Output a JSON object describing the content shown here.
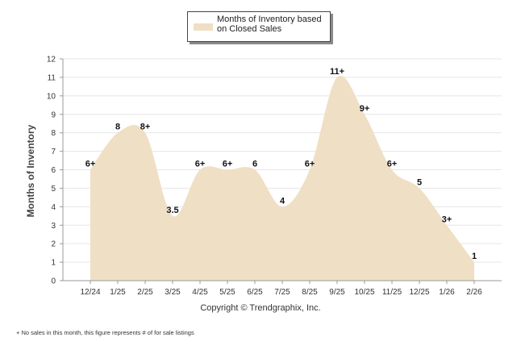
{
  "chart_data": {
    "type": "area",
    "title": "",
    "legend": {
      "label": "Months of Inventory based on Closed Sales",
      "placement": "top-center"
    },
    "xlabel": "",
    "ylabel": "Months of Inventory",
    "ylim": [
      0,
      12
    ],
    "yticks": [
      "0",
      "1",
      "2",
      "3",
      "4",
      "5",
      "6",
      "7",
      "8",
      "9",
      "10",
      "11",
      "12"
    ],
    "grid": true,
    "categories": [
      "12/24",
      "1/25",
      "2/25",
      "3/25",
      "4/25",
      "5/25",
      "6/25",
      "7/25",
      "8/25",
      "9/25",
      "10/25",
      "11/25",
      "12/25",
      "1/26",
      "2/26"
    ],
    "values": [
      6,
      8,
      8,
      3.5,
      6,
      6,
      6,
      4,
      6,
      11,
      9,
      6,
      5,
      3,
      1
    ],
    "data_labels": [
      "6+",
      "8",
      "8+",
      "3.5",
      "6+",
      "6+",
      "6",
      "4",
      "6+",
      "11+",
      "9+",
      "6+",
      "5",
      "3+",
      "1"
    ],
    "fill_color": "#efdfc4"
  },
  "footer": {
    "copyright": "Copyright © Trendgraphix, Inc.",
    "footnote": "+ No sales in this month, this figure represents # of for sale listings"
  }
}
